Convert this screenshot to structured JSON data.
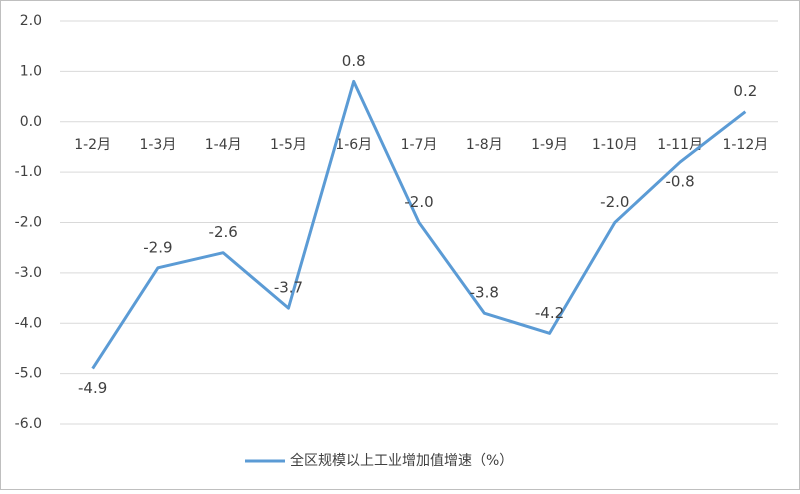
{
  "chart_data": {
    "type": "line",
    "categories": [
      "1-2月",
      "1-3月",
      "1-4月",
      "1-5月",
      "1-6月",
      "1-7月",
      "1-8月",
      "1-9月",
      "1-10月",
      "1-11月",
      "1-12月"
    ],
    "series": [
      {
        "name": "全区规模以上工业增加值增速（%）",
        "color": "#5b9bd5",
        "values": [
          -4.9,
          -2.9,
          -2.6,
          -3.7,
          0.8,
          -2.0,
          -3.8,
          -4.2,
          -2.0,
          -0.8,
          0.2
        ],
        "value_labels": [
          "-4.9",
          "-2.9",
          "-2.6",
          "-3.7",
          "0.8",
          "-2.0",
          "-3.8",
          "-4.2",
          "-2.0",
          "-0.8",
          "0.2"
        ]
      }
    ],
    "ylim": [
      -6,
      2
    ],
    "yticks": [
      {
        "value": -6,
        "label": "-6.0"
      },
      {
        "value": -5,
        "label": "-5.0"
      },
      {
        "value": -4,
        "label": "-4.0"
      },
      {
        "value": -3,
        "label": "-3.0"
      },
      {
        "value": -2,
        "label": "-2.0"
      },
      {
        "value": -1,
        "label": "-1.0"
      },
      {
        "value": 0,
        "label": "0.0"
      },
      {
        "value": 1,
        "label": "1.0"
      },
      {
        "value": 2,
        "label": "2.0"
      }
    ],
    "grid": true,
    "legend": "bottom"
  }
}
